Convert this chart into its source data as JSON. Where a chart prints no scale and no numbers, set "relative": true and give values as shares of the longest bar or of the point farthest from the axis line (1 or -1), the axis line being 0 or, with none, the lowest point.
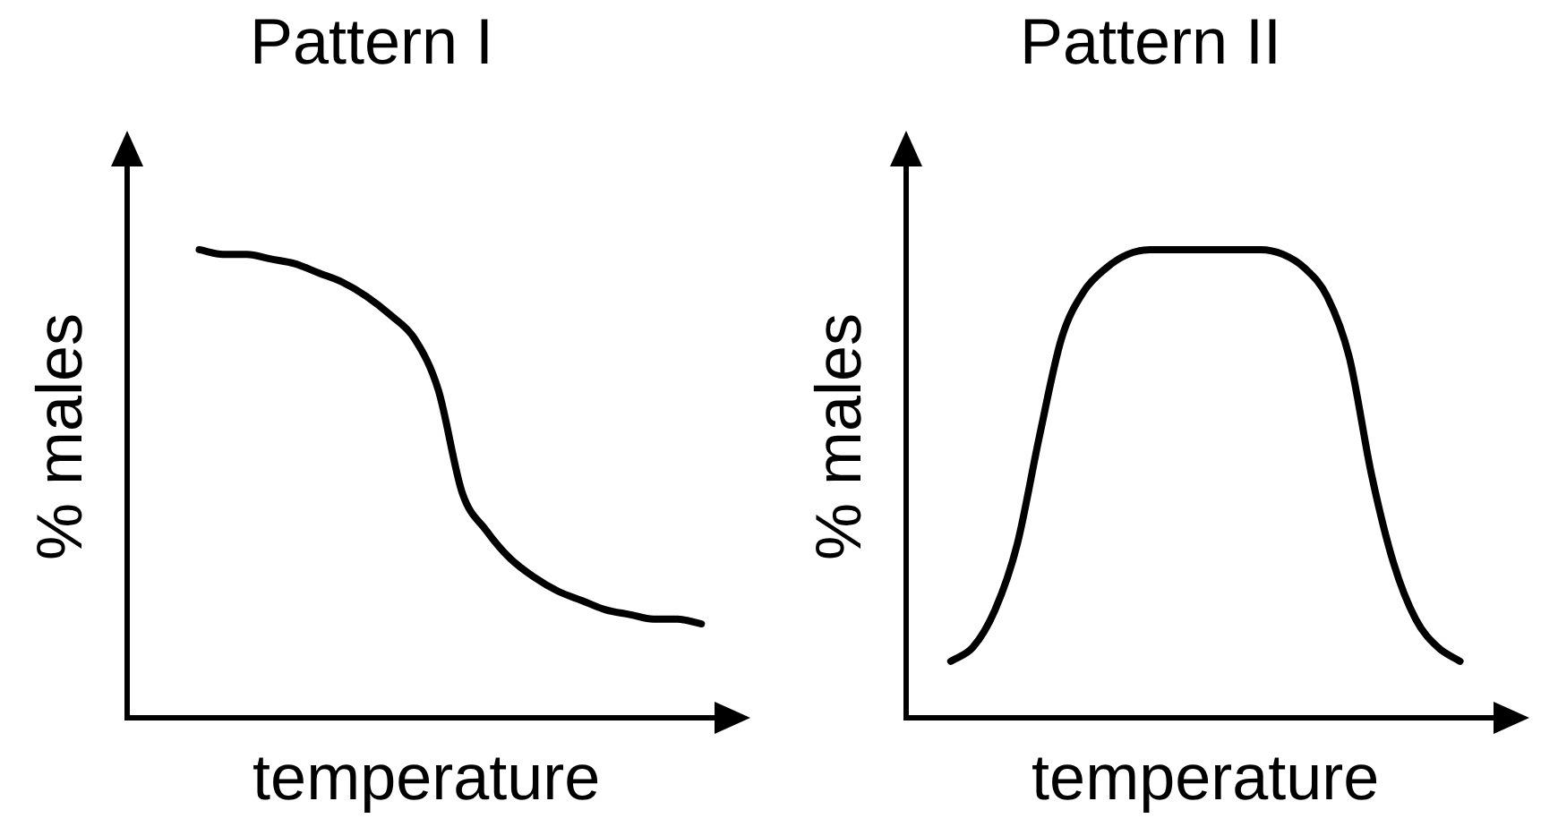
{
  "chart_data": [
    {
      "type": "line",
      "title": "Pattern I",
      "xlabel": "temperature",
      "ylabel": "% males",
      "relative": true,
      "grid": false,
      "legend": false,
      "tick_labels": false,
      "marker": "none",
      "line_style": "solid",
      "categories": [
        null,
        null,
        null,
        null,
        null,
        null,
        null,
        null,
        null,
        null,
        null,
        null,
        null,
        null,
        null,
        null,
        null,
        null,
        null,
        null,
        null,
        null,
        null,
        null,
        null,
        null
      ],
      "series": [
        {
          "color": "#000000",
          "values": [
            null,
            null,
            null,
            1.0,
            0.99,
            0.99,
            0.98,
            0.97,
            0.95,
            0.93,
            0.9,
            0.86,
            0.81,
            0.7,
            0.48,
            0.4,
            0.34,
            0.3,
            0.27,
            0.25,
            0.23,
            0.22,
            0.21,
            0.21,
            0.2,
            null
          ]
        }
      ]
    },
    {
      "type": "line",
      "title": "Pattern II",
      "xlabel": "temperature",
      "ylabel": "% males",
      "relative": true,
      "grid": false,
      "legend": false,
      "tick_labels": false,
      "marker": "none",
      "line_style": "solid",
      "categories": [
        null,
        null,
        null,
        null,
        null,
        null,
        null,
        null,
        null,
        null,
        null,
        null,
        null,
        null,
        null,
        null,
        null,
        null,
        null,
        null,
        null,
        null,
        null,
        null,
        null,
        null,
        null,
        null
      ],
      "series": [
        {
          "color": "#000000",
          "values": [
            null,
            null,
            0.12,
            0.15,
            0.23,
            0.37,
            0.6,
            0.81,
            0.91,
            0.96,
            0.99,
            1.0,
            1.0,
            1.0,
            1.0,
            1.0,
            1.0,
            0.99,
            0.96,
            0.9,
            0.77,
            0.52,
            0.33,
            0.21,
            0.15,
            0.12,
            null,
            null
          ]
        }
      ]
    }
  ]
}
